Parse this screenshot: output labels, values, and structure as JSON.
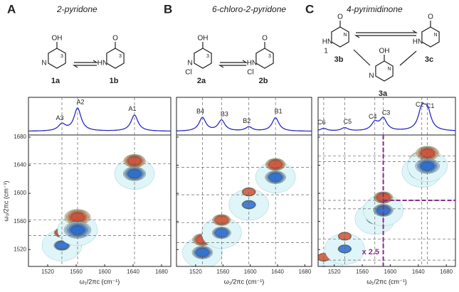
{
  "panels": [
    {
      "letter": "A",
      "title": "2-pyridone",
      "compounds": [
        {
          "label": "1a",
          "atoms": [
            "OH",
            "N",
            "3"
          ]
        },
        {
          "label": "1b",
          "atoms": [
            "O",
            "HN",
            "3"
          ]
        }
      ],
      "peaks": [
        {
          "label": "A3",
          "position": 1540
        },
        {
          "label": "A2",
          "position": 1562
        },
        {
          "label": "A1",
          "position": 1642
        }
      ],
      "xlim": [
        1493,
        1693
      ],
      "ylim": [
        1496,
        1683
      ],
      "xticks": [
        1520,
        1560,
        1600,
        1640,
        1680
      ],
      "yticks": [
        1520,
        1560,
        1600,
        1640,
        1680
      ]
    },
    {
      "letter": "B",
      "title": "6-chloro-2-pyridone",
      "compounds": [
        {
          "label": "2a",
          "atoms": [
            "OH",
            "N",
            "3",
            "Cl"
          ]
        },
        {
          "label": "2b",
          "atoms": [
            "O",
            "HN",
            "3",
            "Cl"
          ]
        }
      ],
      "peaks": [
        {
          "label": "B4",
          "position": 1530
        },
        {
          "label": "B3",
          "position": 1558
        },
        {
          "label": "B2",
          "position": 1598
        },
        {
          "label": "B1",
          "position": 1637
        }
      ],
      "xlim": [
        1492,
        1690
      ],
      "ylim": [
        1496,
        1683
      ],
      "xticks": [
        1520,
        1560,
        1600,
        1640,
        1680
      ],
      "yticks": [
        1520,
        1560,
        1600,
        1640,
        1680
      ]
    },
    {
      "letter": "C",
      "title": "4-pyrimidinone",
      "compounds": [
        {
          "label": "3b",
          "atoms": [
            "O",
            "HN",
            "N",
            "1"
          ]
        },
        {
          "label": "3c",
          "atoms": [
            "O",
            "HN",
            "N"
          ]
        },
        {
          "label": "3a",
          "atoms": [
            "OH",
            "N",
            "N"
          ]
        }
      ],
      "peaks": [
        {
          "label": "C6",
          "position": 1505
        },
        {
          "label": "C5",
          "position": 1535
        },
        {
          "label": "C4",
          "position": 1578
        },
        {
          "label": "C3",
          "position": 1590
        },
        {
          "label": "C2",
          "position": 1645
        },
        {
          "label": "C1",
          "position": 1653
        }
      ],
      "xlim": [
        1497,
        1693
      ],
      "ylim": [
        1496,
        1683
      ],
      "xticks": [
        1520,
        1560,
        1600,
        1640,
        1680
      ],
      "yticks": [
        1520,
        1560,
        1600,
        1640,
        1680
      ],
      "annotation": "x 2.5"
    }
  ],
  "xlabel": "ω₁/2πc (cm⁻¹)",
  "ylabel": "ω₃/2πc (cm⁻¹)"
}
